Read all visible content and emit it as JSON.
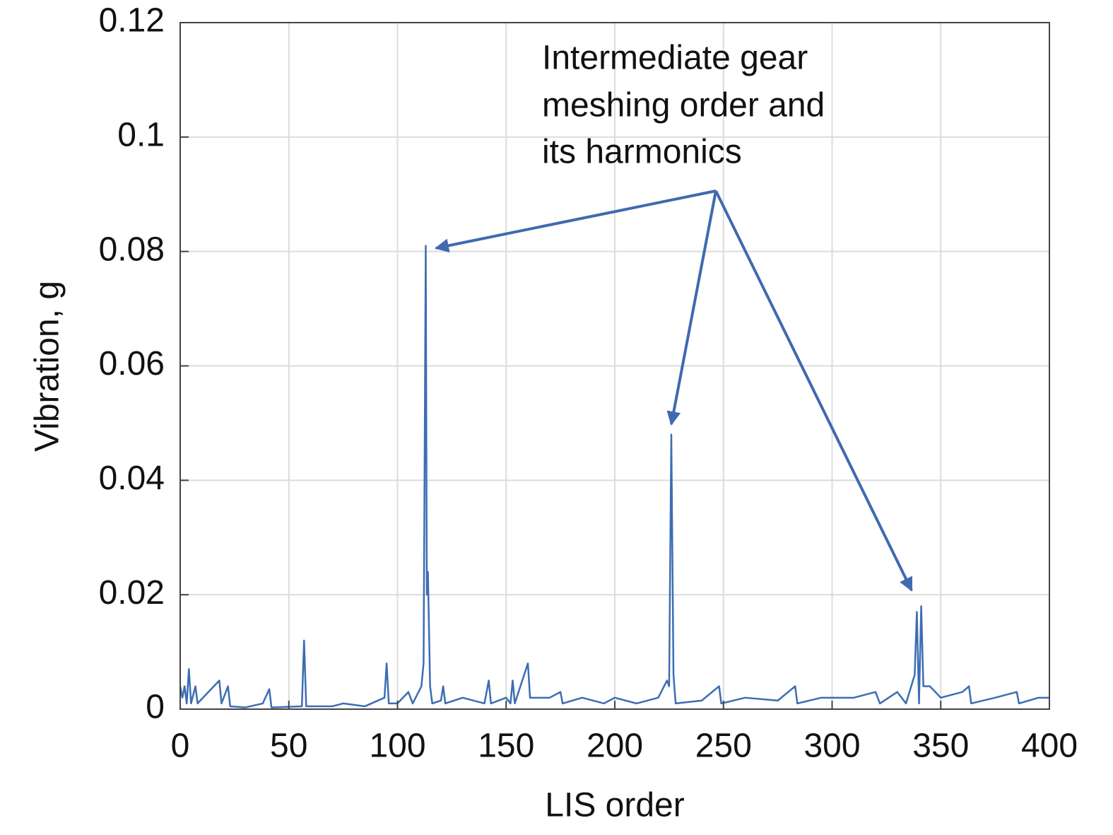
{
  "chart_data": {
    "type": "line",
    "xlabel": "LIS order",
    "ylabel": "Vibration, g",
    "annotation": [
      "Intermediate gear",
      "meshing order and",
      "its harmonics"
    ],
    "x": [
      0,
      1,
      2,
      3,
      4,
      5,
      7,
      8,
      18,
      19,
      22,
      23,
      30,
      38,
      41,
      42,
      56,
      57,
      58,
      70,
      75,
      85,
      94,
      95,
      96,
      100,
      105,
      107,
      111,
      112,
      113,
      113.5,
      114,
      115,
      116,
      120,
      121,
      122,
      130,
      140,
      142,
      143,
      150,
      152,
      153,
      154,
      160,
      161,
      170,
      175,
      176,
      185,
      195,
      200,
      210,
      220,
      224,
      225,
      226,
      227,
      228,
      240,
      248,
      249,
      260,
      275,
      283,
      284,
      295,
      310,
      320,
      322,
      330,
      334,
      338,
      339,
      340,
      341,
      342,
      345,
      350,
      360,
      363,
      364,
      375,
      385,
      386,
      395,
      400
    ],
    "series": [
      {
        "color": "#3d6db3",
        "values": [
          0.004,
          0.002,
          0.004,
          0.001,
          0.007,
          0.001,
          0.004,
          0.001,
          0.005,
          0.001,
          0.004,
          0.0005,
          0.0003,
          0.001,
          0.0035,
          0.0003,
          0.0005,
          0.012,
          0.0005,
          0.0005,
          0.001,
          0.0005,
          0.002,
          0.008,
          0.001,
          0.001,
          0.003,
          0.001,
          0.004,
          0.008,
          0.081,
          0.02,
          0.024,
          0.004,
          0.001,
          0.0015,
          0.004,
          0.001,
          0.002,
          0.001,
          0.005,
          0.001,
          0.002,
          0.001,
          0.005,
          0.001,
          0.008,
          0.002,
          0.002,
          0.003,
          0.001,
          0.002,
          0.001,
          0.002,
          0.001,
          0.002,
          0.005,
          0.004,
          0.048,
          0.006,
          0.001,
          0.0015,
          0.004,
          0.001,
          0.002,
          0.0015,
          0.004,
          0.001,
          0.002,
          0.002,
          0.003,
          0.001,
          0.003,
          0.001,
          0.006,
          0.017,
          0.001,
          0.018,
          0.004,
          0.004,
          0.002,
          0.003,
          0.004,
          0.001,
          0.002,
          0.003,
          0.001,
          0.002,
          0.002
        ]
      }
    ],
    "xlim": [
      0,
      400
    ],
    "xticks": [
      0,
      50,
      100,
      150,
      200,
      250,
      300,
      350,
      400
    ],
    "ylim": [
      0,
      0.12
    ],
    "yticks": [
      0,
      0.02,
      0.04,
      0.06,
      0.08,
      0.1,
      0.12
    ],
    "grid": true
  }
}
